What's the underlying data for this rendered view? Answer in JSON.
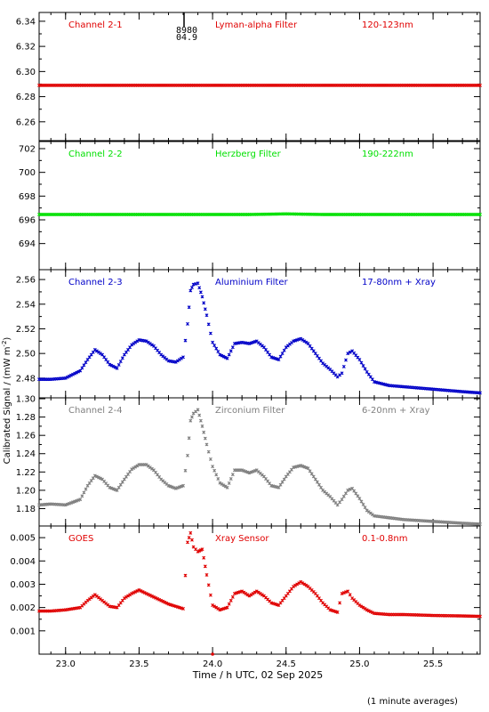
{
  "figure": {
    "ylabel": "Calibrated Signal / (mW m",
    "ylabel_sup": "-2",
    "ylabel_tail": ")",
    "xlabel": "Time / h UTC, 02 Sep 2025",
    "footnote": "(1 minute averages)",
    "marker_text_1": "8980",
    "marker_text_2": "04.9"
  },
  "chart_data": [
    {
      "type": "scatter",
      "channel": "Channel 2-1",
      "filter": "Lyman-alpha Filter",
      "band": "120-123nm",
      "color": "#e00000",
      "xlim": [
        22.82,
        25.82
      ],
      "ylim": [
        6.245,
        6.347
      ],
      "yticks": [
        "6.26",
        "6.28",
        "6.30",
        "6.32",
        "6.34"
      ],
      "xticks": [
        "23.0",
        "23.5",
        "24.0",
        "24.5",
        "25.0",
        "25.5"
      ],
      "series": [
        {
          "x": [
            22.82,
            23.0,
            23.25,
            23.5,
            23.75,
            24.0,
            24.25,
            24.5,
            24.75,
            25.0,
            25.25,
            25.5,
            25.82
          ],
          "y": [
            6.289,
            6.289,
            6.289,
            6.289,
            6.289,
            6.289,
            6.289,
            6.289,
            6.289,
            6.289,
            6.289,
            6.289,
            6.289
          ]
        }
      ]
    },
    {
      "type": "scatter",
      "channel": "Channel 2-2",
      "filter": "Herzberg Filter",
      "band": "190-222nm",
      "color": "#00e000",
      "xlim": [
        22.82,
        25.82
      ],
      "ylim": [
        691.8,
        702.6
      ],
      "yticks": [
        "694",
        "696",
        "698",
        "700",
        "702"
      ],
      "xticks": [
        "23.0",
        "23.5",
        "24.0",
        "24.5",
        "25.0",
        "25.5"
      ],
      "series": [
        {
          "x": [
            22.82,
            23.0,
            23.25,
            23.5,
            23.75,
            24.0,
            24.25,
            24.5,
            24.75,
            25.0,
            25.25,
            25.5,
            25.82
          ],
          "y": [
            696.45,
            696.45,
            696.45,
            696.45,
            696.45,
            696.45,
            696.45,
            696.5,
            696.45,
            696.45,
            696.45,
            696.45,
            696.45
          ]
        }
      ]
    },
    {
      "type": "scatter",
      "channel": "Channel 2-3",
      "filter": "Aluminium Filter",
      "band": "17-80nm + Xray",
      "color": "#0000c8",
      "xlim": [
        22.82,
        25.82
      ],
      "ylim": [
        2.464,
        2.568
      ],
      "yticks": [
        "2.48",
        "2.50",
        "2.52",
        "2.54",
        "2.56"
      ],
      "xticks": [
        "23.0",
        "23.5",
        "24.0",
        "24.5",
        "25.0",
        "25.5"
      ],
      "series": [
        {
          "x": [
            22.82,
            22.9,
            23.0,
            23.1,
            23.15,
            23.2,
            23.25,
            23.3,
            23.35,
            23.4,
            23.45,
            23.5,
            23.55,
            23.6,
            23.65,
            23.7,
            23.75,
            23.8,
            23.83,
            23.85,
            23.87,
            23.9,
            23.93,
            23.96,
            24.0,
            24.05,
            24.1,
            24.15,
            24.2,
            24.25,
            24.3,
            24.35,
            24.4,
            24.45,
            24.5,
            24.55,
            24.6,
            24.65,
            24.7,
            24.75,
            24.8,
            24.85,
            24.88,
            24.92,
            24.95,
            25.0,
            25.05,
            25.1,
            25.2,
            25.3,
            25.4,
            25.5,
            25.6,
            25.7,
            25.82
          ],
          "y": [
            2.479,
            2.479,
            2.48,
            2.486,
            2.495,
            2.503,
            2.499,
            2.491,
            2.488,
            2.499,
            2.507,
            2.511,
            2.51,
            2.506,
            2.499,
            2.494,
            2.493,
            2.497,
            2.524,
            2.551,
            2.556,
            2.557,
            2.546,
            2.531,
            2.509,
            2.499,
            2.496,
            2.508,
            2.509,
            2.508,
            2.51,
            2.505,
            2.497,
            2.495,
            2.505,
            2.51,
            2.512,
            2.508,
            2.5,
            2.492,
            2.487,
            2.481,
            2.484,
            2.5,
            2.502,
            2.495,
            2.485,
            2.477,
            2.474,
            2.473,
            2.472,
            2.471,
            2.47,
            2.469,
            2.468
          ]
        }
      ]
    },
    {
      "type": "scatter",
      "channel": "Channel 2-4",
      "filter": "Zirconium Filter",
      "band": "6-20nm + Xray",
      "color": "#808080",
      "xlim": [
        22.82,
        25.82
      ],
      "ylim": [
        1.161,
        1.301
      ],
      "yticks": [
        "1.18",
        "1.20",
        "1.22",
        "1.24",
        "1.26",
        "1.28",
        "1.30"
      ],
      "xticks": [
        "23.0",
        "23.5",
        "24.0",
        "24.5",
        "25.0",
        "25.5"
      ],
      "series": [
        {
          "x": [
            22.82,
            22.9,
            23.0,
            23.1,
            23.15,
            23.2,
            23.25,
            23.3,
            23.35,
            23.4,
            23.45,
            23.5,
            23.55,
            23.6,
            23.65,
            23.7,
            23.75,
            23.8,
            23.83,
            23.85,
            23.87,
            23.9,
            23.93,
            23.96,
            24.0,
            24.05,
            24.1,
            24.15,
            24.2,
            24.25,
            24.3,
            24.35,
            24.4,
            24.45,
            24.5,
            24.55,
            24.6,
            24.65,
            24.7,
            24.75,
            24.8,
            24.85,
            24.88,
            24.92,
            24.95,
            25.0,
            25.05,
            25.1,
            25.2,
            25.3,
            25.4,
            25.5,
            25.6,
            25.7,
            25.82
          ],
          "y": [
            1.184,
            1.185,
            1.184,
            1.19,
            1.205,
            1.216,
            1.212,
            1.203,
            1.2,
            1.212,
            1.223,
            1.228,
            1.228,
            1.222,
            1.212,
            1.205,
            1.202,
            1.205,
            1.238,
            1.276,
            1.284,
            1.288,
            1.27,
            1.25,
            1.226,
            1.208,
            1.203,
            1.222,
            1.222,
            1.219,
            1.222,
            1.215,
            1.205,
            1.203,
            1.215,
            1.225,
            1.227,
            1.224,
            1.212,
            1.2,
            1.193,
            1.184,
            1.19,
            1.2,
            1.202,
            1.191,
            1.178,
            1.172,
            1.17,
            1.168,
            1.167,
            1.166,
            1.165,
            1.164,
            1.163
          ]
        }
      ]
    },
    {
      "type": "scatter",
      "channel": "GOES",
      "filter": "Xray Sensor",
      "band": "0.1-0.8nm",
      "color": "#e00000",
      "xlim": [
        22.82,
        25.82
      ],
      "ylim": [
        0.0,
        0.0055
      ],
      "yticks": [
        "0.001",
        "0.002",
        "0.003",
        "0.004",
        "0.005"
      ],
      "xticks": [
        "23.0",
        "23.5",
        "24.0",
        "24.5",
        "25.0",
        "25.5"
      ],
      "series": [
        {
          "x": [
            22.82,
            22.9,
            23.0,
            23.1,
            23.15,
            23.2,
            23.25,
            23.3,
            23.35,
            23.4,
            23.45,
            23.5,
            23.55,
            23.6,
            23.65,
            23.7,
            23.75,
            23.8,
            23.83,
            23.85,
            23.87,
            23.9,
            23.93,
            23.96,
            24.0,
            24.05,
            24.1,
            24.15,
            24.2,
            24.25,
            24.3,
            24.35,
            24.4,
            24.45,
            24.5,
            24.55,
            24.6,
            24.65,
            24.7,
            24.75,
            24.8,
            24.85,
            24.88,
            24.92,
            24.95,
            25.0,
            25.05,
            25.1,
            25.2,
            25.3,
            25.4,
            25.5,
            25.6,
            25.7,
            25.82
          ],
          "y": [
            0.00185,
            0.00185,
            0.0019,
            0.002,
            0.0023,
            0.00255,
            0.0023,
            0.00205,
            0.002,
            0.0024,
            0.0026,
            0.00275,
            0.0026,
            0.00245,
            0.0023,
            0.00215,
            0.00205,
            0.00195,
            0.0048,
            0.0052,
            0.0046,
            0.0044,
            0.0045,
            0.0034,
            0.0021,
            0.0019,
            0.002,
            0.0026,
            0.0027,
            0.0025,
            0.0027,
            0.0025,
            0.0022,
            0.0021,
            0.0025,
            0.0029,
            0.0031,
            0.0029,
            0.0026,
            0.0022,
            0.0019,
            0.0018,
            0.0026,
            0.0027,
            0.0024,
            0.0021,
            0.0019,
            0.00175,
            0.0017,
            0.0017,
            0.00168,
            0.00166,
            0.00165,
            0.00164,
            0.00162
          ]
        }
      ]
    }
  ]
}
